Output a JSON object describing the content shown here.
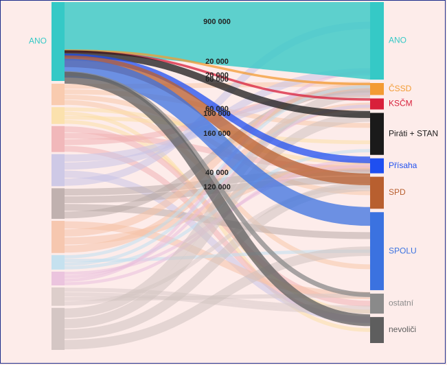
{
  "chart_data": {
    "type": "sankey",
    "source": {
      "name": "ANO",
      "color": "#35c9c6"
    },
    "targets": [
      {
        "name": "ANO",
        "color": "#35c9c6",
        "value": 900000
      },
      {
        "name": "ČSSD",
        "color": "#f39b33",
        "value": 20000
      },
      {
        "name": "KSČM",
        "color": "#d81f3a",
        "value": 20000
      },
      {
        "name": "Piráti + STAN",
        "color": "#1a1a1a",
        "value": 60000
      },
      {
        "name": "Přísaha",
        "color": "#1f4ff0",
        "value": 60000
      },
      {
        "name": "SPD",
        "color": "#b85f2f",
        "value": 100000
      },
      {
        "name": "SPOLU",
        "color": "#3b72e0",
        "value": 160000
      },
      {
        "name": "ostatní",
        "color": "#8a8a8a",
        "value": 40000
      },
      {
        "name": "nevoliči",
        "color": "#5e5e5e",
        "value": 120000
      }
    ],
    "value_labels": [
      "900 000",
      "20 000",
      "20 000",
      "60 000",
      "60 000",
      "100 000",
      "160 000",
      "40 000",
      "120 000"
    ],
    "other_source_colors": [
      "#f8c8a8",
      "#fbe0a6",
      "#f0b3b5",
      "#c9c5e6",
      "#b9aba8",
      "#f5c3a8",
      "#bfe0f0",
      "#e9c0dd",
      "#d9cbc8",
      "#cfc2c0"
    ],
    "other_source_values": [
      0.28,
      0.22,
      0.34,
      0.42,
      0.4,
      0.42,
      0.19,
      0.18,
      0.24,
      0.55
    ]
  }
}
